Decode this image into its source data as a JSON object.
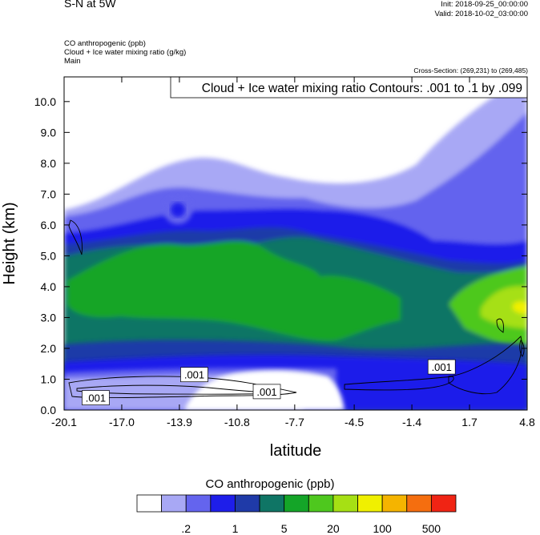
{
  "header": {
    "title": "S-N at 5W",
    "init": "Init: 2018-09-25_00:00:00",
    "valid": "Valid: 2018-10-02_03:00:00",
    "var_line1": "CO anthropogenic   (ppb)",
    "var_line2": "Cloud + Ice water mixing ratio   (g/kg)",
    "var_line3": "Main",
    "cross_section": "Cross-Section: (269,231) to (269,485)"
  },
  "chart_data": {
    "type": "contour",
    "contour_label": "Cloud + Ice water mixing ratio Contours: .001 to .1 by .099",
    "xlabel": "latitude",
    "ylabel": "Height (km)",
    "x_ticks": [
      "-20.1",
      "-17.0",
      "-13.9",
      "-10.8",
      "-7.7",
      "-4.5",
      "-1.4",
      "1.7",
      "4.8"
    ],
    "y_ticks": [
      "0.0",
      "1.0",
      "2.0",
      "3.0",
      "4.0",
      "5.0",
      "6.0",
      "7.0",
      "8.0",
      "9.0",
      "10.0"
    ],
    "xlim": [
      -20.1,
      4.8
    ],
    "ylim": [
      0.0,
      10.8
    ],
    "contour_labels": [
      {
        "text": ".001",
        "x": -18.4,
        "y": 0.4
      },
      {
        "text": ".001",
        "x": -13.1,
        "y": 1.15
      },
      {
        "text": ".001",
        "x": -9.2,
        "y": 0.6
      },
      {
        "text": ".001",
        "x": 0.2,
        "y": 1.4
      }
    ],
    "colorbar": {
      "title": "CO anthropogenic  (ppb)",
      "colors": [
        "#ffffff",
        "#a8a8f5",
        "#6464ee",
        "#1e1eea",
        "#1f3aa8",
        "#0f7565",
        "#14a528",
        "#4ec81e",
        "#a6e014",
        "#f0f000",
        "#f5b400",
        "#f56e0f",
        "#f02414"
      ],
      "labels": [
        ".2",
        "1",
        "5",
        "20",
        "100",
        "500"
      ]
    }
  }
}
